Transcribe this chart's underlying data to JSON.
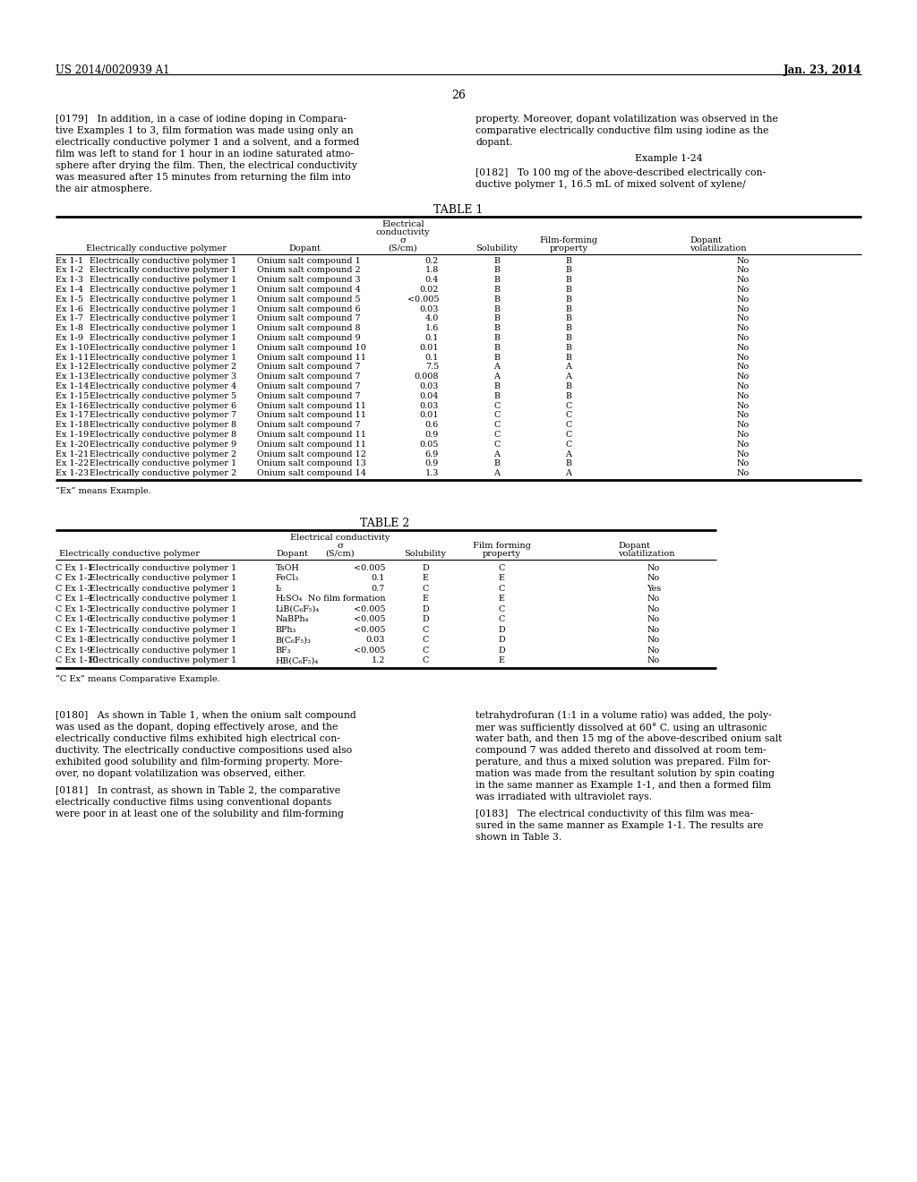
{
  "page_header_left": "US 2014/0020939 A1",
  "page_header_right": "Jan. 23, 2014",
  "page_number": "26",
  "background_color": "#ffffff",
  "text_color": "#000000",
  "table1_title": "TABLE 1",
  "table1_rows": [
    [
      "Ex 1-1",
      "Electrically conductive polymer 1",
      "Onium salt compound 1",
      "0.2",
      "B",
      "B",
      "No"
    ],
    [
      "Ex 1-2",
      "Electrically conductive polymer 1",
      "Onium salt compound 2",
      "1.8",
      "B",
      "B",
      "No"
    ],
    [
      "Ex 1-3",
      "Electrically conductive polymer 1",
      "Onium salt compound 3",
      "0.4",
      "B",
      "B",
      "No"
    ],
    [
      "Ex 1-4",
      "Electrically conductive polymer 1",
      "Onium salt compound 4",
      "0.02",
      "B",
      "B",
      "No"
    ],
    [
      "Ex 1-5",
      "Electrically conductive polymer 1",
      "Onium salt compound 5",
      "<0.005",
      "B",
      "B",
      "No"
    ],
    [
      "Ex 1-6",
      "Electrically conductive polymer 1",
      "Onium salt compound 6",
      "0.03",
      "B",
      "B",
      "No"
    ],
    [
      "Ex 1-7",
      "Electrically conductive polymer 1",
      "Onium salt compound 7",
      "4.0",
      "B",
      "B",
      "No"
    ],
    [
      "Ex 1-8",
      "Electrically conductive polymer 1",
      "Onium salt compound 8",
      "1.6",
      "B",
      "B",
      "No"
    ],
    [
      "Ex 1-9",
      "Electrically conductive polymer 1",
      "Onium salt compound 9",
      "0.1",
      "B",
      "B",
      "No"
    ],
    [
      "Ex 1-10",
      "Electrically conductive polymer 1",
      "Onium salt compound 10",
      "0.01",
      "B",
      "B",
      "No"
    ],
    [
      "Ex 1-11",
      "Electrically conductive polymer 1",
      "Onium salt compound 11",
      "0.1",
      "B",
      "B",
      "No"
    ],
    [
      "Ex 1-12",
      "Electrically conductive polymer 2",
      "Onium salt compound 7",
      "7.5",
      "A",
      "A",
      "No"
    ],
    [
      "Ex 1-13",
      "Electrically conductive polymer 3",
      "Onium salt compound 7",
      "0.008",
      "A",
      "A",
      "No"
    ],
    [
      "Ex 1-14",
      "Electrically conductive polymer 4",
      "Onium salt compound 7",
      "0.03",
      "B",
      "B",
      "No"
    ],
    [
      "Ex 1-15",
      "Electrically conductive polymer 5",
      "Onium salt compound 7",
      "0.04",
      "B",
      "B",
      "No"
    ],
    [
      "Ex 1-16",
      "Electrically conductive polymer 6",
      "Onium salt compound 11",
      "0.03",
      "C",
      "C",
      "No"
    ],
    [
      "Ex 1-17",
      "Electrically conductive polymer 7",
      "Onium salt compound 11",
      "0.01",
      "C",
      "C",
      "No"
    ],
    [
      "Ex 1-18",
      "Electrically conductive polymer 8",
      "Onium salt compound 7",
      "0.6",
      "C",
      "C",
      "No"
    ],
    [
      "Ex 1-19",
      "Electrically conductive polymer 8",
      "Onium salt compound 11",
      "0.9",
      "C",
      "C",
      "No"
    ],
    [
      "Ex 1-20",
      "Electrically conductive polymer 9",
      "Onium salt compound 11",
      "0.05",
      "C",
      "C",
      "No"
    ],
    [
      "Ex 1-21",
      "Electrically conductive polymer 2",
      "Onium salt compound 12",
      "6.9",
      "A",
      "A",
      "No"
    ],
    [
      "Ex 1-22",
      "Electrically conductive polymer 1",
      "Onium salt compound 13",
      "0.9",
      "B",
      "B",
      "No"
    ],
    [
      "Ex 1-23",
      "Electrically conductive polymer 2",
      "Onium salt compound 14",
      "1.3",
      "A",
      "A",
      "No"
    ]
  ],
  "table1_footnote": "“Ex” means Example.",
  "table2_title": "TABLE 2",
  "table2_rows": [
    [
      "C Ex 1-1",
      "Electrically conductive polymer 1",
      "TsOH",
      "<0.005",
      "D",
      "C",
      "No"
    ],
    [
      "C Ex 1-2",
      "Electrically conductive polymer 1",
      "FeCl₃",
      "0.1",
      "E",
      "E",
      "No"
    ],
    [
      "C Ex 1-3",
      "Electrically conductive polymer 1",
      "I₂",
      "0.7",
      "C",
      "C",
      "Yes"
    ],
    [
      "C Ex 1-4",
      "Electrically conductive polymer 1",
      "H₂SO₄",
      "No film formation",
      "E",
      "E",
      "No"
    ],
    [
      "C Ex 1-5",
      "Electrically conductive polymer 1",
      "LiB(C₆F₅)₄",
      "<0.005",
      "D",
      "C",
      "No"
    ],
    [
      "C Ex 1-6",
      "Electrically conductive polymer 1",
      "NaBPh₄",
      "<0.005",
      "D",
      "C",
      "No"
    ],
    [
      "C Ex 1-7",
      "Electrically conductive polymer 1",
      "BPh₃",
      "<0.005",
      "C",
      "D",
      "No"
    ],
    [
      "C Ex 1-8",
      "Electrically conductive polymer 1",
      "B(C₆F₅)₃",
      "0.03",
      "C",
      "D",
      "No"
    ],
    [
      "C Ex 1-9",
      "Electrically conductive polymer 1",
      "BF₃",
      "<0.005",
      "C",
      "D",
      "No"
    ],
    [
      "C Ex 1-10",
      "Electrically conductive polymer 1",
      "HB(C₆F₅)₄",
      "1.2",
      "C",
      "E",
      "No"
    ]
  ],
  "table2_footnote": "“C Ex” means Comparative Example.",
  "p179_left": [
    "[0179]   In addition, in a case of iodine doping in Compara-",
    "tive Examples 1 to 3, film formation was made using only an",
    "electrically conductive polymer 1 and a solvent, and a formed",
    "film was left to stand for 1 hour in an iodine saturated atmo-",
    "sphere after drying the film. Then, the electrical conductivity",
    "was measured after 15 minutes from returning the film into",
    "the air atmosphere."
  ],
  "p179_right": [
    "property. Moreover, dopant volatilization was observed in the",
    "comparative electrically conductive film using iodine as the",
    "dopant."
  ],
  "example124": "Example 1-24",
  "p182_right": [
    "[0182]   To 100 mg of the above-described electrically con-",
    "ductive polymer 1, 16.5 mL of mixed solvent of xylene/"
  ],
  "p180_left": [
    "[0180]   As shown in Table 1, when the onium salt compound",
    "was used as the dopant, doping effectively arose, and the",
    "electrically conductive films exhibited high electrical con-",
    "ductivity. The electrically conductive compositions used also",
    "exhibited good solubility and film-forming property. More-",
    "over, no dopant volatilization was observed, either."
  ],
  "p181_left": [
    "[0181]   In contrast, as shown in Table 2, the comparative",
    "electrically conductive films using conventional dopants",
    "were poor in at least one of the solubility and film-forming"
  ],
  "p180_right": [
    "tetrahydrofuran (1:1 in a volume ratio) was added, the poly-",
    "mer was sufficiently dissolved at 60° C. using an ultrasonic",
    "water bath, and then 15 mg of the above-described onium salt",
    "compound 7 was added thereto and dissolved at room tem-",
    "perature, and thus a mixed solution was prepared. Film for-",
    "mation was made from the resultant solution by spin coating",
    "in the same manner as Example 1-1, and then a formed film",
    "was irradiated with ultraviolet rays."
  ],
  "p183_right": [
    "[0183]   The electrical conductivity of this film was mea-",
    "sured in the same manner as Example 1-1. The results are",
    "shown in Table 3."
  ]
}
